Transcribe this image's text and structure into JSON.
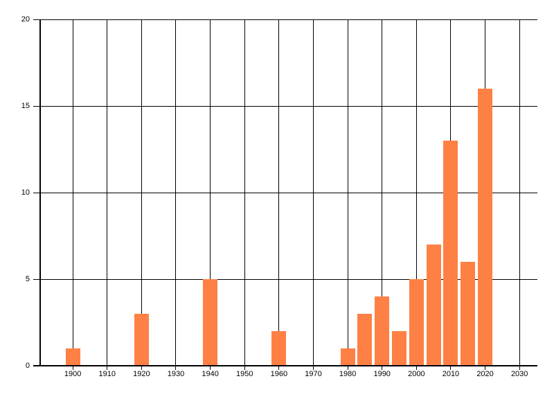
{
  "chart_data": {
    "type": "bar",
    "title": "",
    "xlabel": "",
    "ylabel": "",
    "x": [
      1900,
      1920,
      1940,
      1960,
      1980,
      1985,
      1990,
      1995,
      2000,
      2005,
      2010,
      2015,
      2020
    ],
    "values": [
      1,
      3,
      5,
      2,
      1,
      3,
      4,
      2,
      5,
      7,
      13,
      6,
      16
    ],
    "x_ticks": [
      1900,
      1910,
      1920,
      1930,
      1940,
      1950,
      1960,
      1970,
      1980,
      1990,
      2000,
      2010,
      2020,
      2030
    ],
    "y_ticks": [
      0,
      5,
      10,
      15,
      20
    ],
    "xlim": [
      1890.5,
      2035.2
    ],
    "ylim": [
      0,
      20
    ],
    "grid": true,
    "legend_position": "none",
    "bar_width_years": 4.3,
    "colors": {
      "bar": "#FF8045",
      "grid": "#000000",
      "axis": "#000000",
      "text": "#000000",
      "background": "#FFFFFF"
    }
  }
}
